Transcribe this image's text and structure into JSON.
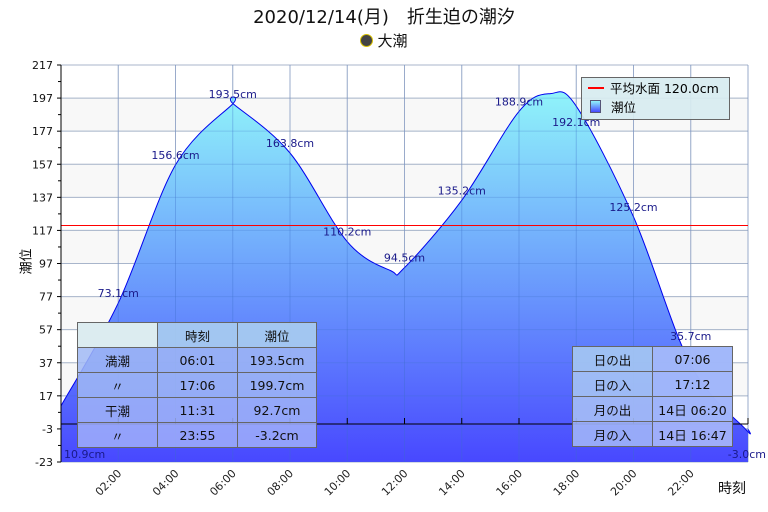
{
  "title": "2020/12/14(月)　折生迫の潮汐",
  "subtitle": "大潮",
  "colors": {
    "mean_line": "#ff0000",
    "curve": "#0000ee",
    "fill_top": "#90f4fa",
    "fill_bottom": "#4848ff",
    "label": "#1a1a8a"
  },
  "legend": {
    "mean": "平均水面 120.0cm",
    "tide": "潮位"
  },
  "chart_data": {
    "type": "area",
    "ylabel": "潮位",
    "xlabel": "時刻",
    "ylim": [
      -23,
      217
    ],
    "yticks": [
      217,
      197,
      177,
      157,
      137,
      117,
      97,
      77,
      57,
      37,
      17,
      -3,
      -23
    ],
    "xlim": [
      0,
      24
    ],
    "xticks": [
      "02:00",
      "04:00",
      "06:00",
      "08:00",
      "10:00",
      "12:00",
      "14:00",
      "16:00",
      "18:00",
      "20:00",
      "22:00"
    ],
    "grid": true,
    "legend_position": "top-right",
    "mean_level": 120.0,
    "points": [
      {
        "t": 0,
        "v": 10.9,
        "label": "10.9cm"
      },
      {
        "t": 2,
        "v": 73.1,
        "label": "73.1cm"
      },
      {
        "t": 4,
        "v": 156.6,
        "label": "156.6cm"
      },
      {
        "t": 6,
        "v": 193.5,
        "label": "193.5cm"
      },
      {
        "t": 8,
        "v": 163.8,
        "label": "163.8cm"
      },
      {
        "t": 10,
        "v": 110.2,
        "label": "110.2cm"
      },
      {
        "t": 12,
        "v": 94.5,
        "label": "94.5cm"
      },
      {
        "t": 14,
        "v": 135.2,
        "label": "135.2cm"
      },
      {
        "t": 16,
        "v": 188.9,
        "label": "188.9cm"
      },
      {
        "t": 18,
        "v": 192.1,
        "label": "192.1cm"
      },
      {
        "t": 20,
        "v": 125.2,
        "label": "125.2cm"
      },
      {
        "t": 22,
        "v": 35.7,
        "label": "35.7cm"
      },
      {
        "t": 24,
        "v": -3.0,
        "label": "-3.0cm"
      }
    ],
    "extremes": [
      {
        "t": 6.017,
        "v": 193.5
      },
      {
        "t": 11.517,
        "v": 92.7
      },
      {
        "t": 17.1,
        "v": 199.7
      },
      {
        "t": 23.917,
        "v": -3.2
      }
    ]
  },
  "tide_table": {
    "headers": [
      "",
      "時刻",
      "潮位"
    ],
    "rows": [
      [
        "満潮",
        "06:01",
        "193.5cm"
      ],
      [
        "〃",
        "17:06",
        "199.7cm"
      ],
      [
        "干潮",
        "11:31",
        "92.7cm"
      ],
      [
        "〃",
        "23:55",
        "-3.2cm"
      ]
    ]
  },
  "sun_moon_table": {
    "rows": [
      [
        "日の出",
        "07:06"
      ],
      [
        "日の入",
        "17:12"
      ],
      [
        "月の出",
        "14日 06:20"
      ],
      [
        "月の入",
        "14日 16:47"
      ]
    ]
  }
}
